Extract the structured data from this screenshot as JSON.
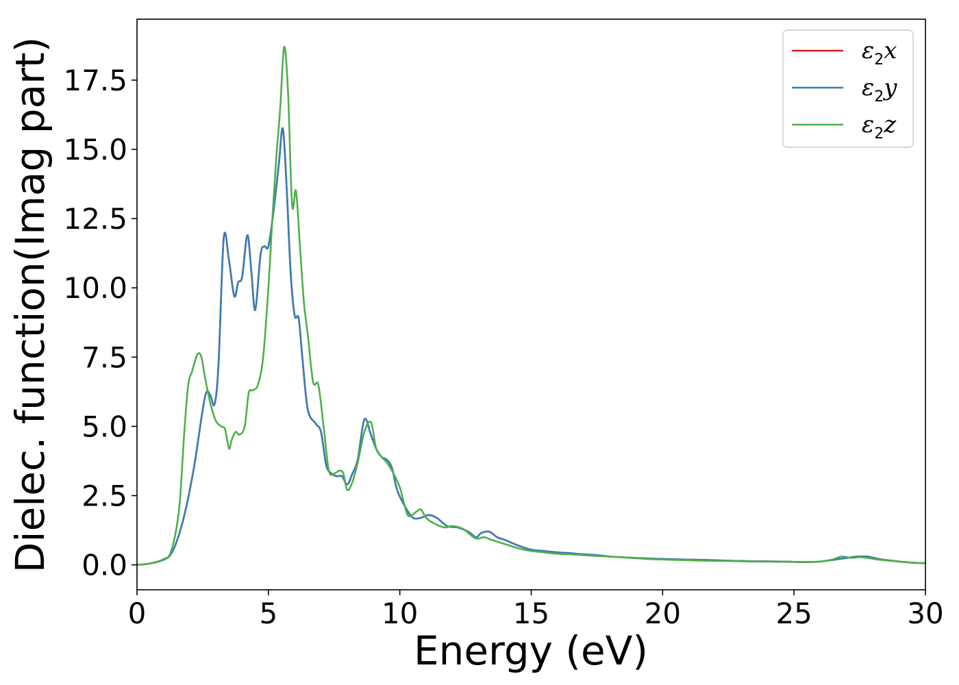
{
  "chart_data": {
    "type": "line",
    "xlabel": "Energy (eV)",
    "ylabel": "Dielec. function(Imag part)",
    "xlim": [
      0,
      30
    ],
    "ylim": [
      -0.9,
      19.7
    ],
    "xticks": [
      0,
      5,
      10,
      15,
      20,
      25,
      30
    ],
    "xtick_labels": [
      "0",
      "5",
      "10",
      "15",
      "20",
      "25",
      "30"
    ],
    "yticks": [
      0,
      2.5,
      5,
      7.5,
      10,
      12.5,
      15,
      17.5
    ],
    "ytick_labels": [
      "0.0",
      "2.5",
      "5.0",
      "7.5",
      "10.0",
      "12.5",
      "15.0",
      "17.5"
    ],
    "grid": false,
    "legend_position": "upper right",
    "legend": [
      {
        "sym": "ε",
        "sub": "2",
        "var": "x",
        "color": "#e41a1c"
      },
      {
        "sym": "ε",
        "sub": "2",
        "var": "y",
        "color": "#377eb8"
      },
      {
        "sym": "ε",
        "sub": "2",
        "var": "z",
        "color": "#4daf4a"
      }
    ],
    "series": [
      {
        "color": "#e41a1c",
        "x": [
          0,
          0.5,
          1.0,
          1.3,
          1.6,
          1.9,
          2.2,
          2.5,
          2.65,
          2.8,
          2.95,
          3.1,
          3.3,
          3.5,
          3.7,
          3.85,
          4.0,
          4.2,
          4.35,
          4.5,
          4.7,
          4.85,
          5.0,
          5.2,
          5.4,
          5.55,
          5.7,
          5.85,
          6.0,
          6.15,
          6.3,
          6.5,
          6.8,
          7.0,
          7.2,
          7.4,
          7.6,
          7.8,
          8.0,
          8.2,
          8.4,
          8.65,
          8.9,
          9.1,
          9.3,
          9.5,
          9.7,
          9.9,
          10.2,
          10.5,
          10.8,
          11.1,
          11.4,
          11.8,
          12.2,
          12.6,
          12.9,
          13.1,
          13.4,
          13.7,
          14.0,
          14.5,
          15.0,
          15.5,
          16.0,
          16.5,
          17.0,
          17.5,
          18.0,
          18.5,
          19.0,
          19.7,
          20.5,
          21.5,
          22.5,
          23.5,
          24.5,
          25.5,
          26.0,
          26.5,
          27.0,
          27.4,
          27.8,
          28.3,
          29.0,
          29.5,
          30.0
        ],
        "y": [
          0.0,
          0.05,
          0.18,
          0.4,
          1.1,
          2.2,
          3.7,
          5.6,
          6.25,
          6.1,
          5.8,
          7.2,
          11.8,
          11.0,
          9.7,
          10.2,
          10.4,
          11.9,
          10.6,
          9.2,
          11.2,
          11.5,
          11.5,
          12.8,
          14.5,
          15.75,
          13.5,
          10.5,
          9.0,
          8.9,
          7.4,
          5.6,
          5.1,
          4.8,
          3.6,
          3.3,
          3.2,
          3.2,
          2.9,
          3.3,
          3.8,
          5.25,
          4.7,
          4.2,
          3.9,
          3.8,
          3.5,
          2.7,
          2.1,
          1.7,
          1.7,
          1.8,
          1.7,
          1.4,
          1.35,
          1.2,
          1.0,
          1.15,
          1.2,
          1.0,
          0.9,
          0.7,
          0.55,
          0.5,
          0.45,
          0.42,
          0.38,
          0.35,
          0.3,
          0.27,
          0.25,
          0.22,
          0.2,
          0.18,
          0.15,
          0.13,
          0.12,
          0.1,
          0.12,
          0.18,
          0.25,
          0.3,
          0.3,
          0.2,
          0.12,
          0.08,
          0.06
        ]
      },
      {
        "color": "#377eb8",
        "x": [
          0,
          0.5,
          1.0,
          1.3,
          1.6,
          1.9,
          2.2,
          2.5,
          2.65,
          2.8,
          2.95,
          3.1,
          3.3,
          3.5,
          3.7,
          3.85,
          4.0,
          4.2,
          4.35,
          4.5,
          4.7,
          4.85,
          5.0,
          5.2,
          5.4,
          5.55,
          5.7,
          5.85,
          6.0,
          6.15,
          6.3,
          6.5,
          6.8,
          7.0,
          7.2,
          7.4,
          7.6,
          7.8,
          8.0,
          8.2,
          8.4,
          8.65,
          8.9,
          9.1,
          9.3,
          9.5,
          9.7,
          9.9,
          10.2,
          10.5,
          10.8,
          11.1,
          11.4,
          11.8,
          12.2,
          12.6,
          12.9,
          13.1,
          13.4,
          13.7,
          14.0,
          14.5,
          15.0,
          15.5,
          16.0,
          16.5,
          17.0,
          17.5,
          18.0,
          18.5,
          19.0,
          19.7,
          20.5,
          21.5,
          22.5,
          23.5,
          24.5,
          25.5,
          26.0,
          26.5,
          27.0,
          27.4,
          27.8,
          28.3,
          29.0,
          29.5,
          30.0
        ],
        "y": [
          0.0,
          0.05,
          0.18,
          0.4,
          1.1,
          2.2,
          3.7,
          5.6,
          6.25,
          6.1,
          5.8,
          7.2,
          11.8,
          11.0,
          9.7,
          10.2,
          10.4,
          11.9,
          10.6,
          9.2,
          11.2,
          11.5,
          11.5,
          12.8,
          14.5,
          15.75,
          13.5,
          10.5,
          9.0,
          8.9,
          7.4,
          5.6,
          5.1,
          4.8,
          3.6,
          3.3,
          3.2,
          3.2,
          2.9,
          3.3,
          3.8,
          5.25,
          4.7,
          4.2,
          3.9,
          3.8,
          3.5,
          2.7,
          2.1,
          1.7,
          1.7,
          1.8,
          1.7,
          1.4,
          1.35,
          1.2,
          1.0,
          1.15,
          1.2,
          1.0,
          0.9,
          0.7,
          0.55,
          0.5,
          0.45,
          0.42,
          0.38,
          0.35,
          0.3,
          0.27,
          0.25,
          0.22,
          0.2,
          0.18,
          0.15,
          0.13,
          0.12,
          0.1,
          0.12,
          0.18,
          0.25,
          0.3,
          0.3,
          0.2,
          0.12,
          0.08,
          0.06
        ]
      },
      {
        "color": "#4daf4a",
        "x": [
          0,
          0.5,
          1.0,
          1.3,
          1.6,
          1.8,
          1.95,
          2.1,
          2.3,
          2.45,
          2.6,
          2.8,
          3.0,
          3.2,
          3.35,
          3.5,
          3.6,
          3.75,
          3.9,
          4.1,
          4.25,
          4.4,
          4.6,
          4.8,
          5.0,
          5.15,
          5.3,
          5.45,
          5.6,
          5.75,
          5.9,
          6.05,
          6.2,
          6.35,
          6.5,
          6.7,
          6.9,
          7.1,
          7.3,
          7.5,
          7.7,
          7.85,
          8.0,
          8.2,
          8.4,
          8.65,
          8.9,
          9.1,
          9.3,
          9.5,
          9.7,
          10.0,
          10.3,
          10.6,
          10.8,
          11.0,
          11.3,
          11.7,
          12.0,
          12.4,
          12.8,
          13.0,
          13.2,
          13.5,
          14.0,
          14.5,
          15.0,
          15.5,
          16.0,
          16.5,
          17.0,
          17.5,
          18.0,
          18.5,
          19.0,
          19.7,
          20.5,
          21.5,
          22.5,
          23.5,
          24.5,
          25.5,
          26.0,
          26.5,
          26.8,
          27.2,
          27.5,
          27.8,
          28.3,
          29.0,
          29.5,
          30.0
        ],
        "y": [
          0.0,
          0.05,
          0.2,
          0.5,
          2.0,
          4.8,
          6.5,
          7.0,
          7.6,
          7.5,
          6.7,
          5.8,
          5.2,
          5.0,
          4.9,
          4.2,
          4.5,
          4.8,
          4.7,
          5.0,
          6.2,
          6.3,
          6.5,
          7.5,
          10.0,
          12.5,
          14.7,
          16.5,
          18.7,
          17.0,
          13.0,
          13.5,
          11.5,
          9.5,
          8.3,
          6.6,
          6.5,
          5.0,
          3.4,
          3.3,
          3.4,
          3.3,
          2.7,
          3.0,
          3.7,
          4.8,
          5.15,
          4.2,
          3.9,
          3.7,
          3.4,
          2.8,
          1.8,
          1.9,
          2.0,
          1.7,
          1.5,
          1.35,
          1.4,
          1.3,
          1.0,
          0.95,
          1.0,
          0.9,
          0.75,
          0.6,
          0.5,
          0.45,
          0.4,
          0.38,
          0.35,
          0.32,
          0.3,
          0.27,
          0.24,
          0.2,
          0.18,
          0.15,
          0.14,
          0.12,
          0.11,
          0.1,
          0.12,
          0.2,
          0.3,
          0.25,
          0.28,
          0.25,
          0.18,
          0.12,
          0.08,
          0.06
        ]
      }
    ]
  }
}
